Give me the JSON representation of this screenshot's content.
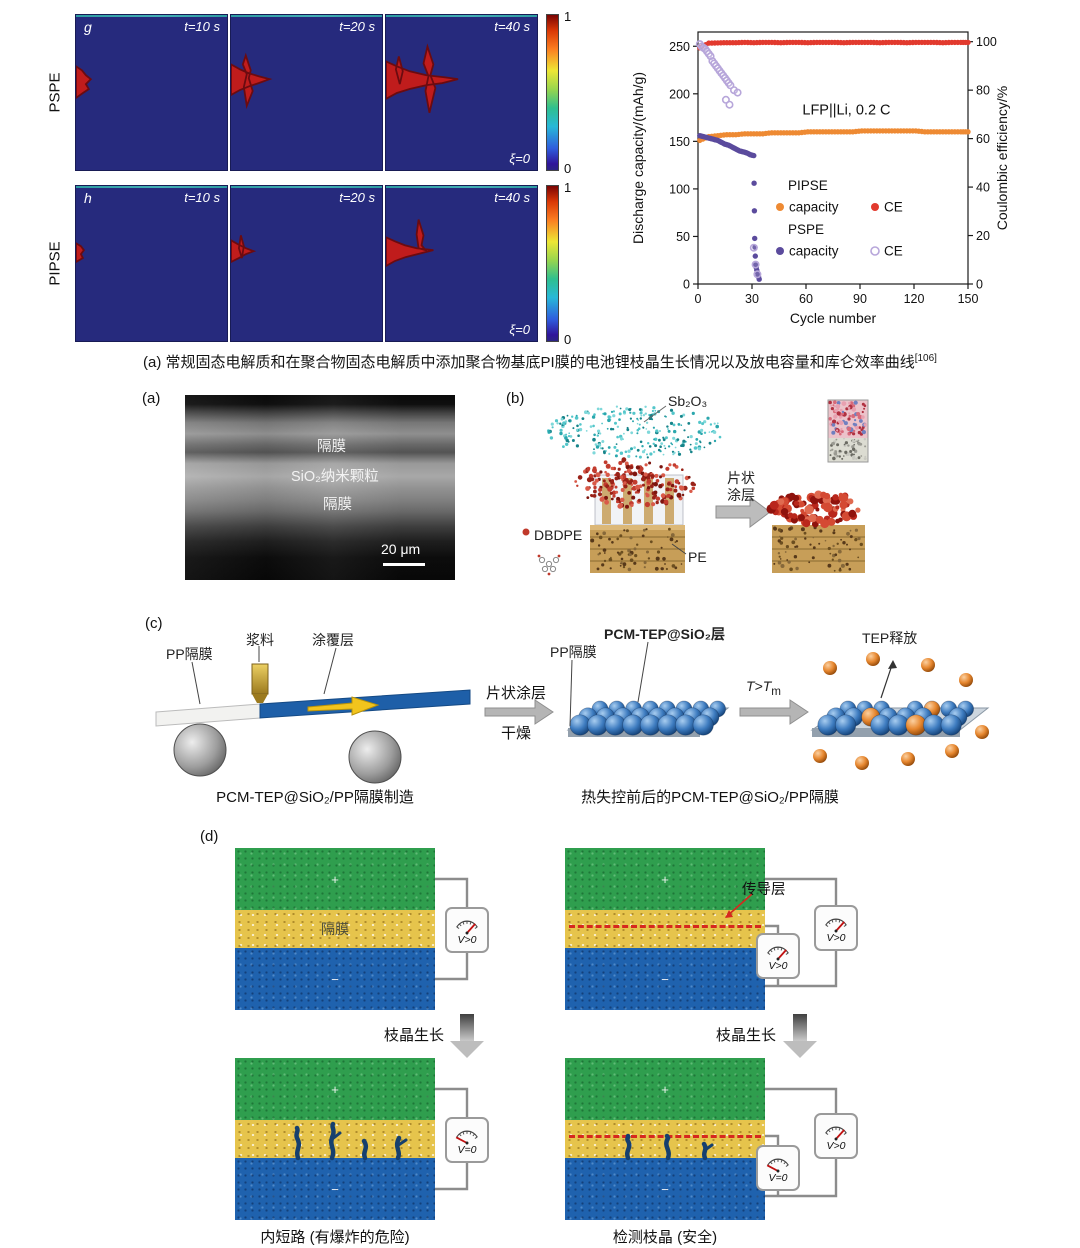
{
  "sim": {
    "rows": [
      {
        "panel_letter": "g",
        "side_label": "PSPE",
        "times": [
          "t=10 s",
          "t=20 s",
          "t=40 s"
        ],
        "xi": "ξ=0"
      },
      {
        "panel_letter": "h",
        "side_label": "PIPSE",
        "times": [
          "t=10 s",
          "t=20 s",
          "t=40 s"
        ],
        "xi": "ξ=0"
      }
    ],
    "colorbar_top": "1",
    "colorbar_bottom": "0"
  },
  "chart_data": {
    "type": "scatter",
    "annotation": "LFP||Li, 0.2 C",
    "xlabel": "Cycle number",
    "ylabel_left": "Discharge capacity/(mAh/g)",
    "ylabel_right": "Coulombic efficiency/%",
    "xlim": [
      0,
      150
    ],
    "xticks": [
      0,
      30,
      60,
      90,
      120,
      150
    ],
    "ylim_left": [
      0,
      265
    ],
    "yticks_left": [
      0,
      50,
      100,
      150,
      200,
      250
    ],
    "ylim_right": [
      0,
      104
    ],
    "yticks_right": [
      0,
      20,
      40,
      60,
      80,
      100
    ],
    "grid": false,
    "legend": {
      "group1": "PIPSE",
      "group2": "PSPE",
      "capacity": "capacity",
      "ce": "CE"
    },
    "series": [
      {
        "name": "PIPSE capacity",
        "axis": "left",
        "marker": "filled",
        "color": "#ee8a33",
        "dense": true,
        "points": [
          [
            1,
            151
          ],
          [
            6,
            155
          ],
          [
            11,
            156
          ],
          [
            16,
            157
          ],
          [
            21,
            157
          ],
          [
            26,
            158
          ],
          [
            31,
            158
          ],
          [
            36,
            158
          ],
          [
            41,
            159
          ],
          [
            46,
            159
          ],
          [
            51,
            159
          ],
          [
            56,
            159
          ],
          [
            61,
            160
          ],
          [
            66,
            160
          ],
          [
            71,
            160
          ],
          [
            76,
            160
          ],
          [
            81,
            160
          ],
          [
            86,
            160
          ],
          [
            91,
            161
          ],
          [
            96,
            161
          ],
          [
            101,
            161
          ],
          [
            106,
            161
          ],
          [
            111,
            161
          ],
          [
            116,
            161
          ],
          [
            121,
            161
          ],
          [
            126,
            160
          ],
          [
            131,
            160
          ],
          [
            136,
            160
          ],
          [
            141,
            160
          ],
          [
            146,
            160
          ],
          [
            150,
            160
          ]
        ]
      },
      {
        "name": "PIPSE CE",
        "axis": "right",
        "marker": "filled",
        "color": "#e23a2e",
        "dense": true,
        "points": [
          [
            1,
            97.5
          ],
          [
            6,
            99.4
          ],
          [
            11,
            99.5
          ],
          [
            16,
            99.6
          ],
          [
            21,
            99.6
          ],
          [
            26,
            99.7
          ],
          [
            31,
            99.6
          ],
          [
            36,
            99.7
          ],
          [
            41,
            99.7
          ],
          [
            46,
            99.6
          ],
          [
            51,
            99.7
          ],
          [
            56,
            99.7
          ],
          [
            61,
            99.6
          ],
          [
            66,
            99.7
          ],
          [
            71,
            99.7
          ],
          [
            76,
            99.7
          ],
          [
            81,
            99.6
          ],
          [
            86,
            99.7
          ],
          [
            91,
            99.7
          ],
          [
            96,
            99.7
          ],
          [
            101,
            99.6
          ],
          [
            106,
            99.7
          ],
          [
            111,
            99.7
          ],
          [
            116,
            99.6
          ],
          [
            121,
            99.7
          ],
          [
            126,
            99.7
          ],
          [
            131,
            99.7
          ],
          [
            136,
            99.6
          ],
          [
            141,
            99.7
          ],
          [
            146,
            99.7
          ],
          [
            150,
            99.7
          ]
        ]
      },
      {
        "name": "PSPE capacity",
        "axis": "left",
        "marker": "filled",
        "color": "#5b4b9d",
        "dense": true,
        "points": [
          [
            1,
            156
          ],
          [
            3,
            155
          ],
          [
            5,
            154
          ],
          [
            7,
            153
          ],
          [
            9,
            152
          ],
          [
            11,
            151
          ],
          [
            13,
            149
          ],
          [
            15,
            147
          ],
          [
            17,
            146
          ],
          [
            19,
            144
          ],
          [
            21,
            142
          ],
          [
            23,
            140
          ],
          [
            25,
            139
          ],
          [
            27,
            138
          ],
          [
            29,
            136
          ],
          [
            31,
            135
          ],
          [
            31.5,
            48
          ],
          [
            32,
            20
          ],
          [
            33,
            12
          ],
          [
            34,
            5
          ]
        ]
      },
      {
        "name": "PSPE CE",
        "axis": "right",
        "marker": "open",
        "color": "#b7a6da",
        "dense": false,
        "points": [
          [
            1,
            99
          ],
          [
            2,
            98
          ],
          [
            3,
            97.5
          ],
          [
            4,
            97
          ],
          [
            5,
            96
          ],
          [
            6,
            95
          ],
          [
            7,
            94
          ],
          [
            8,
            92
          ],
          [
            9,
            91
          ],
          [
            10,
            90
          ],
          [
            11,
            89
          ],
          [
            12,
            88
          ],
          [
            13,
            87
          ],
          [
            14,
            86
          ],
          [
            15,
            85
          ],
          [
            15.5,
            76
          ],
          [
            16,
            84
          ],
          [
            17,
            83
          ],
          [
            17.5,
            74
          ],
          [
            18,
            82
          ],
          [
            20,
            80
          ],
          [
            22,
            79
          ],
          [
            31,
            15
          ],
          [
            32,
            8
          ],
          [
            33,
            4
          ]
        ]
      }
    ]
  },
  "caption_top": {
    "text": "(a) 常规固态电解质和在聚合物固态电解质中添加聚合物基底PI膜的电池锂枝晶生长情况以及放电容量和库仑效率曲线",
    "ref": "[106]"
  },
  "panel_a": {
    "label": "(a)",
    "band1": "隔膜",
    "band2": "SiO₂纳米颗粒",
    "band3": "隔膜",
    "scalebar": "20 μm"
  },
  "panel_b": {
    "label": "(b)",
    "sb2o3": "Sb₂O₃",
    "dbdpe": "DBDPE",
    "pe": "PE",
    "arrow_line1": "片状",
    "arrow_line2": "涂层"
  },
  "panel_c": {
    "label": "(c)",
    "slurry": "浆料",
    "pp_sep": "PP隔膜",
    "coating_layer": "涂覆层",
    "step1_line1": "片状涂层",
    "step1_line2": "干燥",
    "pp_sep2": "PP隔膜",
    "pcm_layer": "PCM-TEP@SiO₂层",
    "t_main": "T>T",
    "t_sub": "m",
    "tep_release": "TEP释放",
    "caption_left": "PCM-TEP@SiO₂/PP隔膜制造",
    "caption_right": "热失控前后的PCM-TEP@SiO₂/PP隔膜"
  },
  "panel_d": {
    "label": "(d)",
    "separator": "隔膜",
    "conductive_layer": "传导层",
    "dendrite_growth": "枝晶生长",
    "v_pos": "V>0",
    "v_zero": "V=0",
    "plus": "+",
    "minus": "−",
    "caption_left": "内短路 (有爆炸的危险)",
    "caption_right": "检测枝晶 (安全)"
  }
}
